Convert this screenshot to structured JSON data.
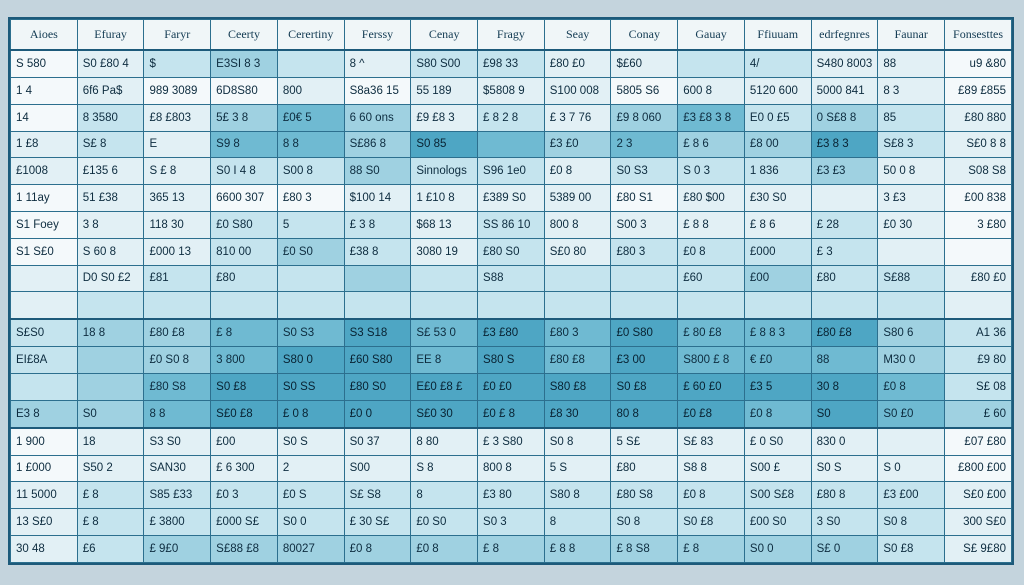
{
  "table": {
    "columns": [
      "Aioes",
      "Efuray",
      "Faryr",
      "Ceerty",
      "Cerertiny",
      "Ferssy",
      "Cenay",
      "Fragy",
      "Seay",
      "Conay",
      "Gauay",
      "Ffiuuam",
      "edrfegnres",
      "Faunar",
      "Fonsesttes"
    ],
    "rows": [
      [
        "S 580",
        "S0 £80 4",
        "$",
        "E3SI 8 3",
        "",
        "8 ^",
        "S80 S00",
        "£98 33",
        "£80 £0",
        "$£60",
        "",
        "4/",
        "S480 8003",
        "88",
        "u9 &80"
      ],
      [
        "1 4",
        "6f6 Pa$",
        "989 3089",
        "6D8S80",
        "800",
        "S8a36 15",
        "55 189",
        "$5808 9",
        "S100 008",
        "5805 S6",
        "600 8",
        "5120 600",
        "5000 841",
        "8 3",
        "£89 £855"
      ],
      [
        "14",
        "8 3580",
        "£8 £803",
        "5£ 3 8",
        "£0€ 5",
        "6 60 ons",
        "£9 £8 3",
        "£ 8 2 8",
        "£ 3 7 76",
        "£9 8 060",
        "£3 £8 3 8",
        "E0 0 £5",
        "0 S£8 8",
        "85",
        "£80 880"
      ],
      [
        "1 £8",
        "S£ 8",
        "E",
        "S9 8",
        "8 8",
        "S£86 8",
        "S0 85",
        "",
        "£3 £0",
        "2 3",
        "£ 8 6",
        "£8 00",
        "£3 8 3",
        "S£8 3",
        "S£0 8 8"
      ],
      [
        "£1008",
        "£135 6",
        "S £ 8",
        "S0 I 4 8",
        "S00 8",
        "88 S0",
        "Sinnologs",
        "S96 1e0",
        "£0 8",
        "S0 S3",
        "S 0 3",
        "1 836",
        "£3 £3",
        "50 0 8",
        "S08 S8"
      ],
      [
        "1 11ay",
        "51 £38",
        "365 13",
        "6600 307",
        "£80 3",
        "$100 14",
        "1 £10 8",
        "£389 S0",
        "5389 00",
        "£80 S1",
        "£80 $00",
        "£30 S0",
        "",
        "3 £3",
        "£00 838"
      ],
      [
        "S1 Foey",
        "3 8",
        "118 30",
        "£0 S80",
        "5",
        "£ 3 8",
        "$68 13",
        "SS 86 10",
        "800 8",
        "S00 3",
        "£ 8 8",
        "£ 8 6",
        "£ 28",
        "£0 30",
        "3 £80"
      ],
      [
        "S1 S£0",
        "S 60 8",
        "£000 13",
        "810 00",
        "£0 S0",
        "£38 8",
        "3080 19",
        "£80 S0",
        "S£0 80",
        "£80 3",
        "£0 8",
        "£000",
        "£ 3",
        "",
        ""
      ],
      [
        "",
        "D0 S0 £2",
        "£81",
        "£80",
        "",
        "",
        "",
        "S88",
        "",
        "",
        "£60",
        "£00",
        "£80",
        "S£88",
        "£80 £0"
      ],
      [
        "",
        "",
        "",
        "",
        "",
        "",
        "",
        "",
        "",
        "",
        "",
        "",
        "",
        "",
        ""
      ],
      [
        "S£S0",
        "18 8",
        "£80 £8",
        "£ 8",
        "S0 S3",
        "S3 S18",
        "S£ 53 0",
        "£3 £80",
        "£80 3",
        "£0 S80",
        "£ 80 £8",
        "£ 8 8 3",
        "£80 £8",
        "S80 6",
        "A1 36"
      ],
      [
        "EI£8A",
        "",
        "£0 S0 8",
        "3 800",
        "S80 0",
        "£60 S80",
        "EE 8",
        "S80 S",
        "£80 £8",
        "£3 00",
        "S800 £ 8",
        "€ £0",
        "88",
        "M30 0",
        "£9 80"
      ],
      [
        "",
        "",
        "£80 S8",
        "S0 £8",
        "S0 SS",
        "£80 S0",
        "E£0 £8 £",
        "£0 £0",
        "S80 £8",
        "S0 £8",
        "£ 60 £0",
        "£3 5",
        "30 8",
        "£0 8",
        "S£ 08"
      ],
      [
        "E3 8",
        "S0",
        "8 8",
        "S£0 £8",
        "£ 0 8",
        "£0 0",
        "S£0 30",
        "£0 £ 8",
        "£8 30",
        "80 8",
        "£0 £8",
        "£0 8",
        "S0",
        "S0 £0",
        "£ 60"
      ],
      [
        "1 900",
        "18",
        "S3 S0",
        "£00",
        "S0 S",
        "S0 37",
        "8 80",
        "£ 3 S80",
        "S0 8",
        "5 S£",
        "S£ 83",
        "£ 0 S0",
        "830 0",
        "",
        "£07 £80"
      ],
      [
        "1 £000",
        "S50 2",
        "SAN30",
        "£ 6 300",
        "2",
        "S00",
        "S 8",
        "800 8",
        "5 S",
        "£80",
        "S8 8",
        "S00 £",
        "S0 S",
        "S 0",
        "£800 £00"
      ],
      [
        "11 5000",
        "£ 8",
        "S85 £33",
        "£0 3",
        "£0 S",
        "S£ S8",
        "8",
        "£3 80",
        "S80 8",
        "£80 S8",
        "£0 8",
        "S00 S£8",
        "£80 8",
        "£3 £00",
        "S£0 £00"
      ],
      [
        "13 S£0",
        "£ 8",
        "£ 3800",
        "£000 S£",
        "S0 0",
        "£ 30 S£",
        "£0 S0",
        "S0 3",
        "8",
        "S0 8",
        "S0 £8",
        "£00 S0",
        "3 S0",
        "S0 8",
        "300 S£0"
      ],
      [
        "30 48",
        "£6",
        "£ 9£0",
        "S£88 £8",
        "80027",
        "£0 8",
        "£0 8",
        "£ 8",
        "£ 8 8",
        "£ 8 S8",
        "£ 8",
        "S0 0",
        "S£ 0",
        "S0 £8",
        "S£ 9£80"
      ]
    ],
    "row_shades": [
      [
        0,
        1,
        2,
        3,
        2,
        1,
        2,
        2,
        1,
        1,
        2,
        2,
        1,
        1,
        0
      ],
      [
        0,
        1,
        0,
        0,
        1,
        0,
        1,
        1,
        1,
        0,
        1,
        1,
        1,
        1,
        0
      ],
      [
        0,
        2,
        1,
        3,
        4,
        3,
        1,
        2,
        1,
        3,
        4,
        2,
        3,
        2,
        1
      ],
      [
        1,
        2,
        1,
        4,
        4,
        3,
        5,
        4,
        3,
        4,
        3,
        3,
        5,
        2,
        1
      ],
      [
        1,
        1,
        1,
        2,
        2,
        3,
        2,
        2,
        1,
        2,
        2,
        2,
        3,
        1,
        1
      ],
      [
        0,
        1,
        1,
        0,
        0,
        1,
        1,
        1,
        1,
        0,
        1,
        1,
        1,
        1,
        0
      ],
      [
        0,
        1,
        1,
        2,
        2,
        2,
        1,
        2,
        1,
        1,
        1,
        1,
        2,
        1,
        0
      ],
      [
        0,
        1,
        1,
        2,
        3,
        2,
        1,
        2,
        1,
        2,
        2,
        2,
        2,
        1,
        0
      ],
      [
        1,
        1,
        2,
        2,
        2,
        3,
        2,
        2,
        2,
        2,
        2,
        3,
        2,
        2,
        1
      ],
      [
        1,
        2,
        2,
        2,
        2,
        2,
        2,
        2,
        2,
        2,
        2,
        2,
        2,
        2,
        1
      ],
      [
        2,
        3,
        3,
        4,
        4,
        5,
        4,
        5,
        4,
        5,
        4,
        4,
        5,
        3,
        2
      ],
      [
        2,
        3,
        3,
        4,
        5,
        5,
        4,
        5,
        4,
        5,
        4,
        4,
        4,
        3,
        2
      ],
      [
        2,
        3,
        4,
        5,
        5,
        5,
        5,
        5,
        5,
        5,
        5,
        5,
        5,
        4,
        2
      ],
      [
        3,
        3,
        4,
        5,
        5,
        5,
        5,
        5,
        5,
        5,
        5,
        4,
        5,
        4,
        3
      ],
      [
        0,
        1,
        1,
        1,
        1,
        1,
        1,
        1,
        1,
        1,
        1,
        1,
        1,
        1,
        0
      ],
      [
        0,
        1,
        1,
        1,
        1,
        1,
        1,
        1,
        1,
        1,
        1,
        1,
        1,
        1,
        0
      ],
      [
        1,
        2,
        2,
        2,
        2,
        2,
        2,
        2,
        2,
        2,
        2,
        2,
        2,
        2,
        1
      ],
      [
        1,
        2,
        2,
        2,
        2,
        2,
        2,
        2,
        2,
        2,
        2,
        2,
        2,
        2,
        1
      ],
      [
        1,
        2,
        3,
        3,
        3,
        3,
        3,
        3,
        3,
        3,
        3,
        3,
        3,
        2,
        1
      ]
    ]
  }
}
